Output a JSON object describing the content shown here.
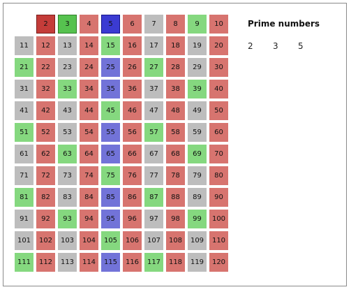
{
  "panel": {
    "title": "Prime numbers",
    "primes": [
      "2",
      "3",
      "5"
    ]
  },
  "grid": {
    "first": 2,
    "last": 120,
    "columns": 10,
    "highlighted": [
      2,
      3,
      5
    ],
    "colors": {
      "gray": "#bdbdbd",
      "red": "#d7746f",
      "green": "#85d87f",
      "blue": "#7273d8",
      "highlight_red": "#c43c39",
      "highlight_green": "#56c24f",
      "highlight_blue": "#3b3bd2"
    }
  }
}
